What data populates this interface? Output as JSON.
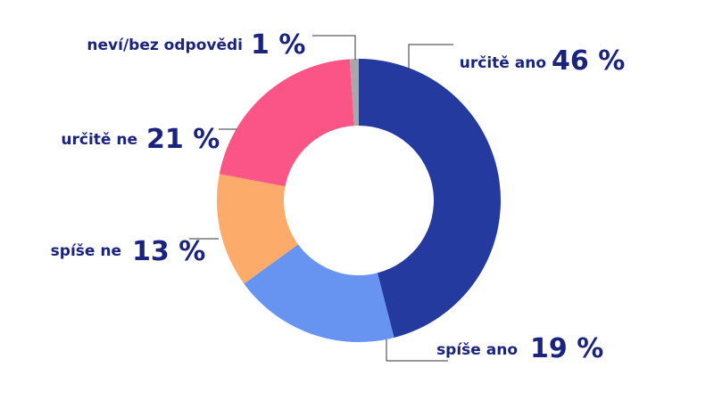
{
  "chart_data": {
    "type": "pie",
    "variant": "donut",
    "slices": [
      {
        "label": "určitě ano",
        "value": 46,
        "value_label": "46 %",
        "color": "#253a9e"
      },
      {
        "label": "spíše ano",
        "value": 19,
        "value_label": "19 %",
        "color": "#6694f0"
      },
      {
        "label": "spíše ne",
        "value": 13,
        "value_label": "13 %",
        "color": "#fdab6b"
      },
      {
        "label": "určitě ne",
        "value": 21,
        "value_label": "21 %",
        "color": "#fb5588"
      },
      {
        "label": "neví/bez odpovědi",
        "value": 1,
        "value_label": "1 %",
        "color": "#a8a8a8"
      }
    ],
    "start": "12 o'clock",
    "direction": "clockwise",
    "labels": "outside with leader lines"
  }
}
